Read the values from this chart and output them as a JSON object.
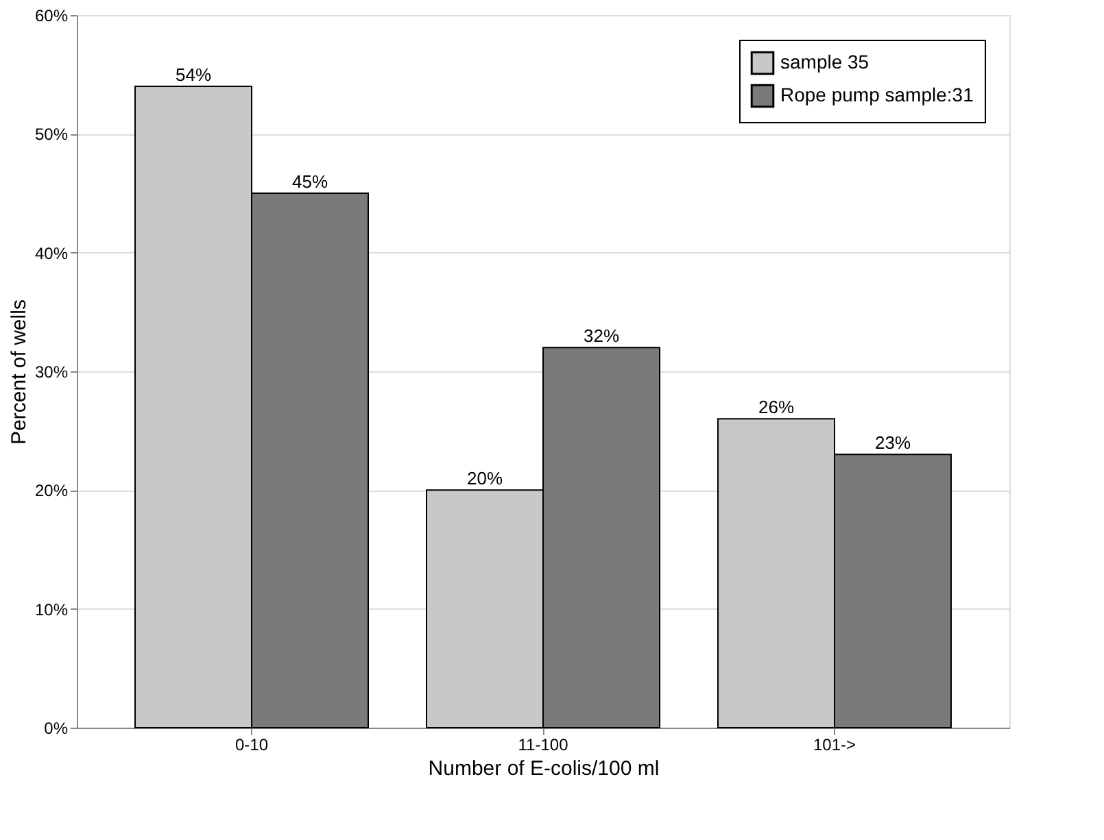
{
  "chart_data": {
    "type": "bar",
    "xlabel": "Number of E-colis/100 ml",
    "ylabel": "Percent of wells",
    "categories": [
      "0-10",
      "11-100",
      "101->"
    ],
    "series": [
      {
        "name": "sample 35",
        "color": "#c8c8c8",
        "values": [
          54,
          20,
          26
        ],
        "value_labels": [
          "54%",
          "20%",
          "26%"
        ]
      },
      {
        "name": "Rope pump sample:31",
        "color": "#7a7a7a",
        "values": [
          45,
          32,
          23
        ],
        "value_labels": [
          "45%",
          "32%",
          "23%"
        ]
      }
    ],
    "ylim": [
      0,
      60
    ],
    "yticks": [
      {
        "value": 0,
        "label": "0%"
      },
      {
        "value": 10,
        "label": "10%"
      },
      {
        "value": 20,
        "label": "20%"
      },
      {
        "value": 30,
        "label": "30%"
      },
      {
        "value": 40,
        "label": "40%"
      },
      {
        "value": 50,
        "label": "50%"
      },
      {
        "value": 60,
        "label": "60%"
      }
    ],
    "grid": "y",
    "legend": "top right"
  }
}
